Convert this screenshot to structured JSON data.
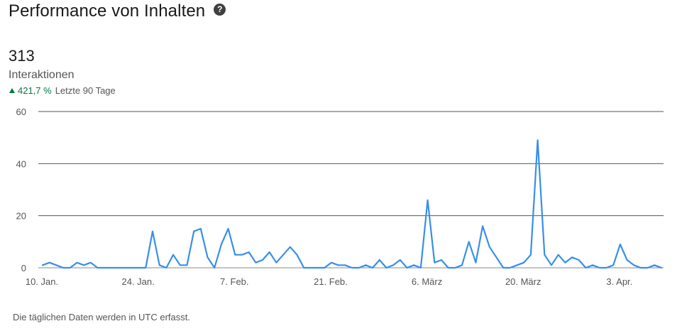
{
  "header": {
    "title": "Performance von Inhalten",
    "help_icon": "question-circle-icon"
  },
  "metric": {
    "value": "313",
    "label": "Interaktionen"
  },
  "trend": {
    "direction": "up",
    "percent": "421,7 %",
    "period": "Letzte 90 Tage",
    "color": "#057642"
  },
  "footnote": "Die täglichen Daten werden in UTC erfasst.",
  "chart_data": {
    "type": "line",
    "title": "",
    "xlabel": "",
    "ylabel": "",
    "ylim": [
      0,
      60
    ],
    "y_ticks": [
      "0",
      "20",
      "40",
      "60"
    ],
    "x_ticks": [
      "10. Jan.",
      "24. Jan.",
      "7. Feb.",
      "21. Feb.",
      "6. März",
      "20. März",
      "3. Apr."
    ],
    "grid": true,
    "line_color": "#378fe9",
    "series": [
      {
        "values": [
          1,
          2,
          1,
          0,
          0,
          2,
          1,
          2,
          0,
          0,
          0,
          0,
          0,
          0,
          0,
          0,
          14,
          1,
          0,
          5,
          1,
          1,
          14,
          15,
          4,
          0,
          9,
          15,
          5,
          5,
          6,
          2,
          3,
          6,
          2,
          5,
          8,
          5,
          0,
          0,
          0,
          0,
          2,
          1,
          1,
          0,
          0,
          1,
          0,
          3,
          0,
          1,
          3,
          0,
          1,
          0,
          26,
          2,
          3,
          0,
          0,
          1,
          10,
          2,
          16,
          8,
          4,
          0,
          0,
          1,
          2,
          5,
          49,
          5,
          1,
          5,
          2,
          4,
          3,
          0,
          1,
          0,
          0,
          1,
          9,
          3,
          1,
          0,
          0,
          1,
          0
        ]
      }
    ]
  }
}
